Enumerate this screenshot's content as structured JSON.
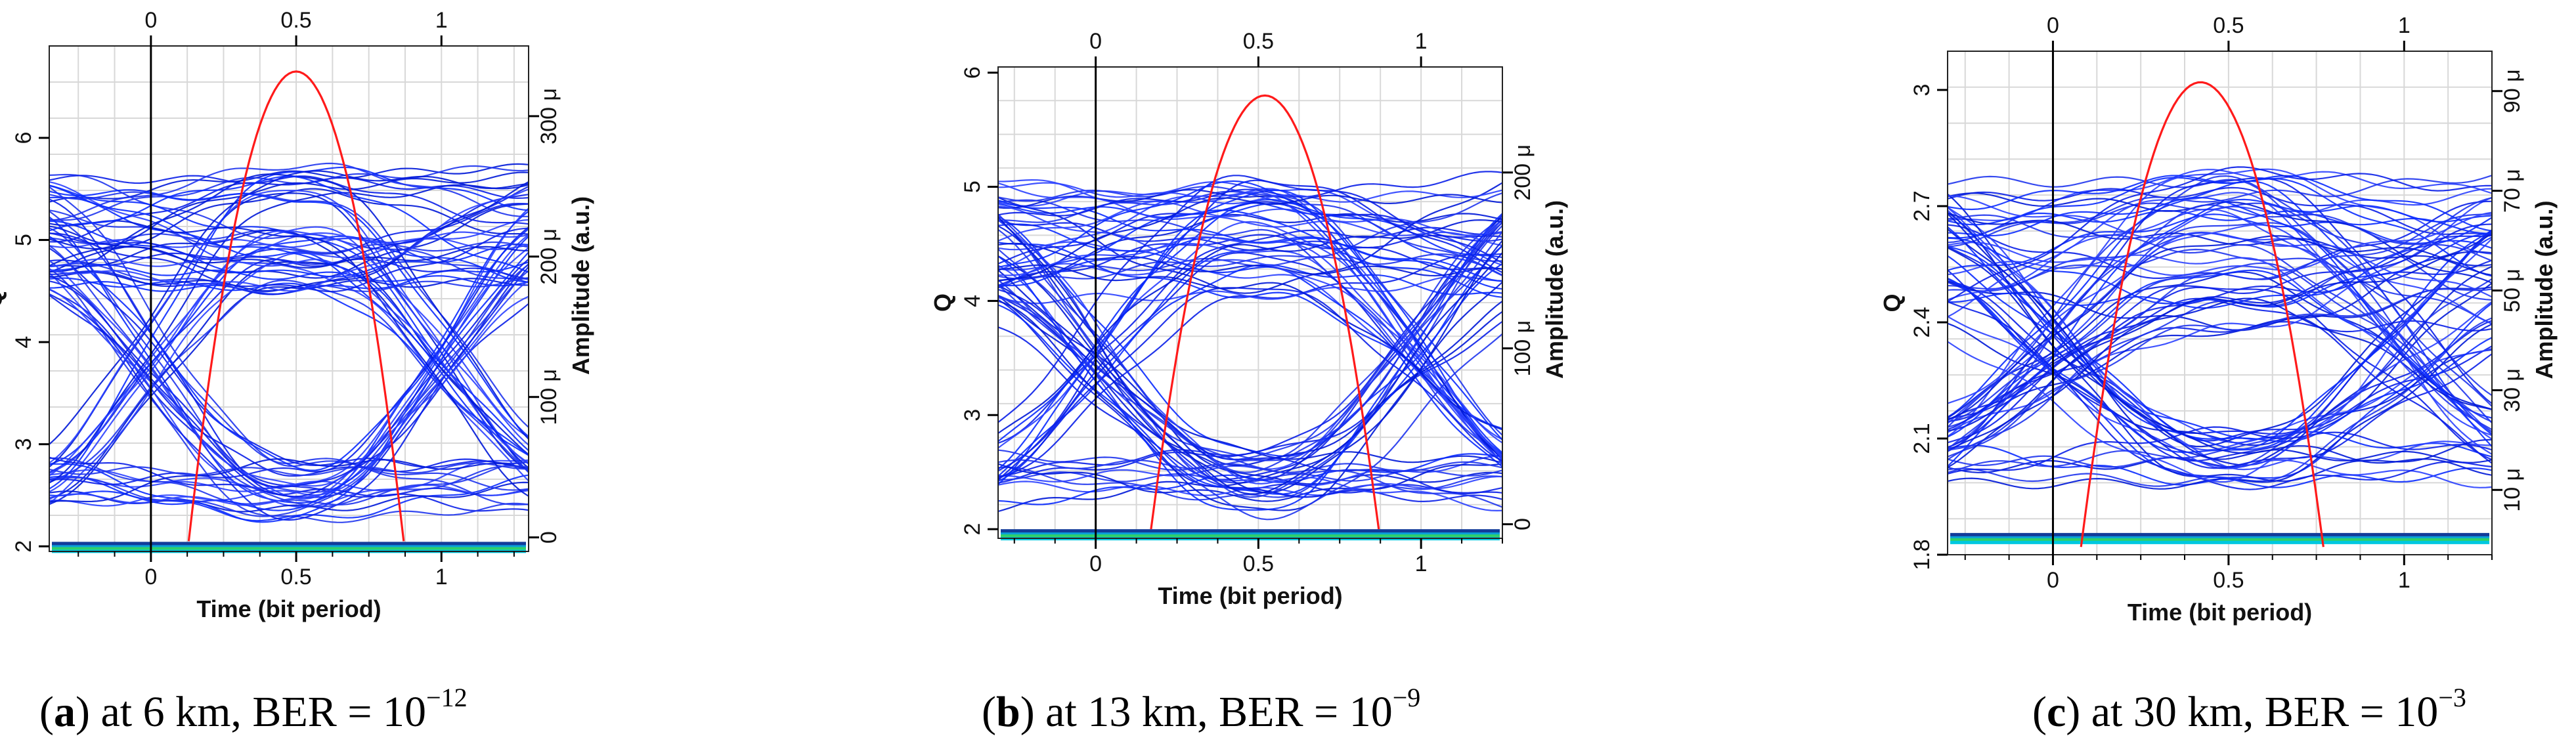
{
  "chart_data": [
    {
      "type": "eye-diagram",
      "panel": "a",
      "xlabel": "Time (bit period)",
      "ylabel_left": "Q",
      "ylabel_right": "Amplitude (a.u.)",
      "xlim": [
        -0.35,
        1.3
      ],
      "ylim_left": [
        1.95,
        6.9
      ],
      "ylim_right": [
        -10,
        350
      ],
      "bottom_ticks": [
        "0",
        "0.5",
        "1"
      ],
      "bottom_tick_values": [
        0,
        0.5,
        1
      ],
      "top_ticks": [
        "0",
        "0.5",
        "1"
      ],
      "top_tick_values": [
        0,
        0.5,
        1
      ],
      "left_ticks": [
        "2",
        "3",
        "4",
        "5",
        "6"
      ],
      "left_tick_values": [
        2,
        3,
        4,
        5,
        6
      ],
      "right_ticks": [
        "0",
        "100 μ",
        "200 μ",
        "300 μ"
      ],
      "right_tick_values": [
        0,
        100,
        200,
        300
      ],
      "q_curve": {
        "x_start": 0.13,
        "x_peak": 0.5,
        "x_end": 0.87,
        "q_min": 2.05,
        "q_max": 6.65
      },
      "eye": {
        "high_mean": 220,
        "high_spread": 45,
        "low_level": 12,
        "cross_level": 100,
        "n_traces": 80
      },
      "caption": {
        "letter": "a",
        "text": ") at 6 km, BER = 10",
        "exponent": "−12"
      }
    },
    {
      "type": "eye-diagram",
      "panel": "b",
      "xlabel": "Time (bit period)",
      "ylabel_left": "Q",
      "ylabel_right": "Amplitude (a.u.)",
      "xlim": [
        -0.3,
        1.25
      ],
      "ylim_left": [
        1.92,
        6.05
      ],
      "ylim_right": [
        -8,
        260
      ],
      "bottom_ticks": [
        "0",
        "0.5",
        "1"
      ],
      "bottom_tick_values": [
        0,
        0.5,
        1
      ],
      "top_ticks": [
        "0",
        "0.5",
        "1"
      ],
      "top_tick_values": [
        0,
        0.5,
        1
      ],
      "left_ticks": [
        "2",
        "3",
        "4",
        "5",
        "6"
      ],
      "left_tick_values": [
        2,
        3,
        4,
        5,
        6
      ],
      "right_ticks": [
        "0",
        "100 μ",
        "200 μ"
      ],
      "right_tick_values": [
        0,
        100,
        200
      ],
      "q_curve": {
        "x_start": 0.17,
        "x_peak": 0.52,
        "x_end": 0.87,
        "q_min": 2.0,
        "q_max": 5.8
      },
      "eye": {
        "high_mean": 165,
        "high_spread": 40,
        "low_level": 5,
        "cross_level": 75,
        "n_traces": 80
      },
      "caption": {
        "letter": "b",
        "text": ") at 13 km, BER = 10",
        "exponent": "−9"
      }
    },
    {
      "type": "eye-diagram",
      "panel": "c",
      "xlabel": "Time (bit period)",
      "ylabel_left": "Q",
      "ylabel_right": "Amplitude (a.u.)",
      "xlim": [
        -0.3,
        1.25
      ],
      "ylim_left": [
        1.8,
        3.1
      ],
      "ylim_right": [
        -3,
        98
      ],
      "bottom_ticks": [
        "0",
        "0.5",
        "1"
      ],
      "bottom_tick_values": [
        0,
        0.5,
        1
      ],
      "top_ticks": [
        "0",
        "0.5",
        "1"
      ],
      "top_tick_values": [
        0,
        0.5,
        1
      ],
      "left_ticks": [
        "1.8",
        "2.1",
        "2.4",
        "2.7",
        "3"
      ],
      "left_tick_values": [
        1.8,
        2.1,
        2.4,
        2.7,
        3.0
      ],
      "right_ticks": [
        "10 μ",
        "30 μ",
        "50 μ",
        "70 μ",
        "90 μ"
      ],
      "right_tick_values": [
        10,
        30,
        50,
        70,
        90
      ],
      "q_curve": {
        "x_start": 0.08,
        "x_peak": 0.42,
        "x_end": 0.77,
        "q_min": 1.82,
        "q_max": 3.02
      },
      "eye": {
        "high_mean": 58,
        "high_spread": 17,
        "low_level": 10,
        "cross_level": 33,
        "n_traces": 80
      },
      "caption": {
        "letter": "c",
        "text": ") at 30 km, BER = 10",
        "exponent": "−3"
      }
    }
  ]
}
